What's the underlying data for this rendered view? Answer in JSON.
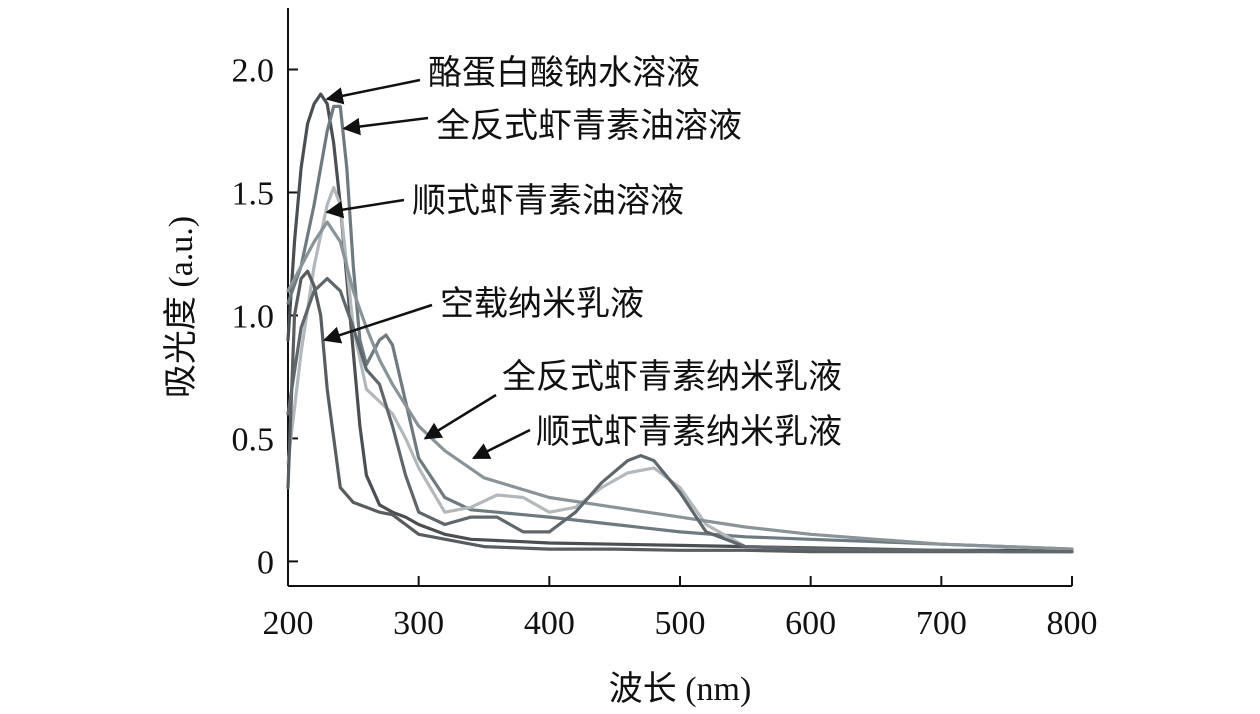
{
  "chart_data": {
    "type": "line",
    "xlabel": "波长 (nm)",
    "ylabel": "吸光度 (a.u.)",
    "xlim": [
      200,
      800
    ],
    "ylim": [
      -0.1,
      2.25
    ],
    "xticks": [
      200,
      300,
      400,
      500,
      600,
      700,
      800
    ],
    "yticks": [
      0,
      0.5,
      1.0,
      1.5,
      2.0
    ],
    "ytick_labels": [
      "0",
      "0.5",
      "1.0",
      "1.5",
      "2.0"
    ],
    "grid": false,
    "legend": "none",
    "series": [
      {
        "name": "酪蛋白酸钠水溶液",
        "color": "#4b4f52",
        "x": [
          200,
          205,
          210,
          215,
          220,
          225,
          230,
          235,
          240,
          245,
          250,
          255,
          260,
          270,
          280,
          290,
          300,
          320,
          340,
          360,
          380,
          400,
          450,
          500,
          550,
          600,
          650,
          700,
          750,
          800
        ],
        "y": [
          0.9,
          1.3,
          1.6,
          1.78,
          1.86,
          1.9,
          1.86,
          1.7,
          1.45,
          1.15,
          0.85,
          0.55,
          0.35,
          0.23,
          0.2,
          0.18,
          0.15,
          0.11,
          0.09,
          0.085,
          0.08,
          0.075,
          0.07,
          0.065,
          0.06,
          0.055,
          0.05,
          0.045,
          0.045,
          0.04
        ]
      },
      {
        "name": "全反式虾青素油溶液",
        "color": "#6f7a80",
        "x": [
          200,
          210,
          220,
          230,
          235,
          240,
          245,
          250,
          255,
          260,
          265,
          270,
          275,
          280,
          290,
          300,
          320,
          340,
          360,
          380,
          400,
          450,
          500,
          550,
          600,
          650,
          700,
          750,
          800
        ],
        "y": [
          1.05,
          1.2,
          1.45,
          1.75,
          1.85,
          1.85,
          1.6,
          1.2,
          0.9,
          0.8,
          0.85,
          0.9,
          0.92,
          0.88,
          0.65,
          0.42,
          0.26,
          0.21,
          0.2,
          0.19,
          0.18,
          0.15,
          0.12,
          0.1,
          0.09,
          0.08,
          0.07,
          0.06,
          0.05
        ]
      },
      {
        "name": "顺式虾青素油溶液",
        "color": "#b3b8bc",
        "x": [
          200,
          210,
          220,
          230,
          235,
          240,
          245,
          250,
          260,
          270,
          280,
          290,
          300,
          320,
          340,
          360,
          380,
          400,
          420,
          440,
          460,
          480,
          500,
          520,
          550,
          600,
          650,
          700,
          750,
          800
        ],
        "y": [
          0.4,
          0.85,
          1.2,
          1.45,
          1.52,
          1.45,
          1.2,
          0.95,
          0.7,
          0.65,
          0.6,
          0.5,
          0.38,
          0.2,
          0.22,
          0.27,
          0.26,
          0.2,
          0.22,
          0.3,
          0.36,
          0.38,
          0.3,
          0.15,
          0.06,
          0.05,
          0.045,
          0.045,
          0.04,
          0.04
        ]
      },
      {
        "name": "空载纳米乳液",
        "color": "#585d60",
        "x": [
          200,
          205,
          210,
          215,
          220,
          225,
          230,
          240,
          250,
          260,
          270,
          280,
          290,
          300,
          350,
          400,
          450,
          500,
          550,
          600,
          650,
          700,
          750,
          800
        ],
        "y": [
          0.3,
          1.0,
          1.15,
          1.18,
          1.12,
          1.0,
          0.7,
          0.3,
          0.24,
          0.22,
          0.2,
          0.19,
          0.15,
          0.11,
          0.06,
          0.05,
          0.05,
          0.045,
          0.045,
          0.04,
          0.04,
          0.04,
          0.04,
          0.04
        ]
      },
      {
        "name": "全反式虾青素纳米乳液",
        "color": "#8a9398",
        "x": [
          200,
          210,
          220,
          230,
          240,
          250,
          260,
          270,
          280,
          300,
          320,
          350,
          400,
          450,
          500,
          550,
          600,
          650,
          700,
          750,
          800
        ],
        "y": [
          1.1,
          1.2,
          1.3,
          1.38,
          1.3,
          1.1,
          0.95,
          0.82,
          0.72,
          0.55,
          0.45,
          0.34,
          0.26,
          0.22,
          0.18,
          0.14,
          0.11,
          0.09,
          0.07,
          0.06,
          0.05
        ]
      },
      {
        "name": "顺式虾青素纳米乳液",
        "color": "#5f676c",
        "x": [
          200,
          210,
          220,
          230,
          240,
          250,
          260,
          270,
          280,
          290,
          300,
          320,
          340,
          360,
          370,
          380,
          400,
          420,
          440,
          460,
          470,
          480,
          500,
          520,
          550,
          600,
          650,
          700,
          750,
          800
        ],
        "y": [
          0.6,
          0.95,
          1.1,
          1.15,
          1.1,
          0.95,
          0.78,
          0.72,
          0.55,
          0.35,
          0.2,
          0.15,
          0.18,
          0.18,
          0.15,
          0.12,
          0.12,
          0.2,
          0.32,
          0.41,
          0.43,
          0.41,
          0.28,
          0.12,
          0.06,
          0.05,
          0.045,
          0.045,
          0.04,
          0.04
        ]
      }
    ],
    "annotations": [
      {
        "text": "酪蛋白酸钠水溶液",
        "target_x": 230,
        "target_y": 1.88
      },
      {
        "text": "全反式虾青素油溶液",
        "target_x": 243,
        "target_y": 1.76
      },
      {
        "text": "顺式虾青素油溶液",
        "target_x": 230,
        "target_y": 1.42
      },
      {
        "text": "空载纳米乳液",
        "target_x": 228,
        "target_y": 0.9
      },
      {
        "text": "全反式虾青素纳米乳液",
        "target_x": 305,
        "target_y": 0.5
      },
      {
        "text": "顺式虾青素纳米乳液",
        "target_x": 342,
        "target_y": 0.42
      }
    ]
  }
}
